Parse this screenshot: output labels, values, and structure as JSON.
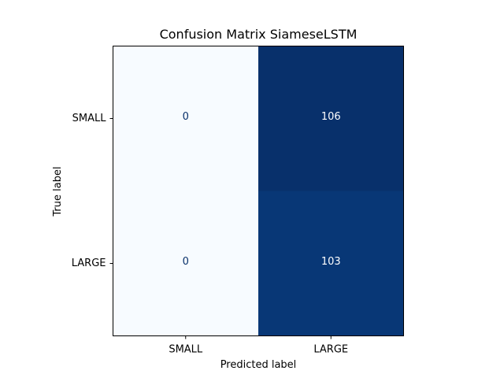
{
  "chart_data": {
    "type": "heatmap",
    "title": "Confusion Matrix SiameseLSTM",
    "xlabel": "Predicted label",
    "ylabel": "True label",
    "x_categories": [
      "SMALL",
      "LARGE"
    ],
    "y_categories": [
      "SMALL",
      "LARGE"
    ],
    "values": [
      [
        0,
        106
      ],
      [
        0,
        103
      ]
    ],
    "colormap": "Blues",
    "colorbar": false,
    "grid": false
  },
  "colors": {
    "low": "#f7fbff",
    "high": "#08306b",
    "text_on_light": "#08306b",
    "text_on_dark": "#ffffff",
    "axis": "#000000"
  }
}
